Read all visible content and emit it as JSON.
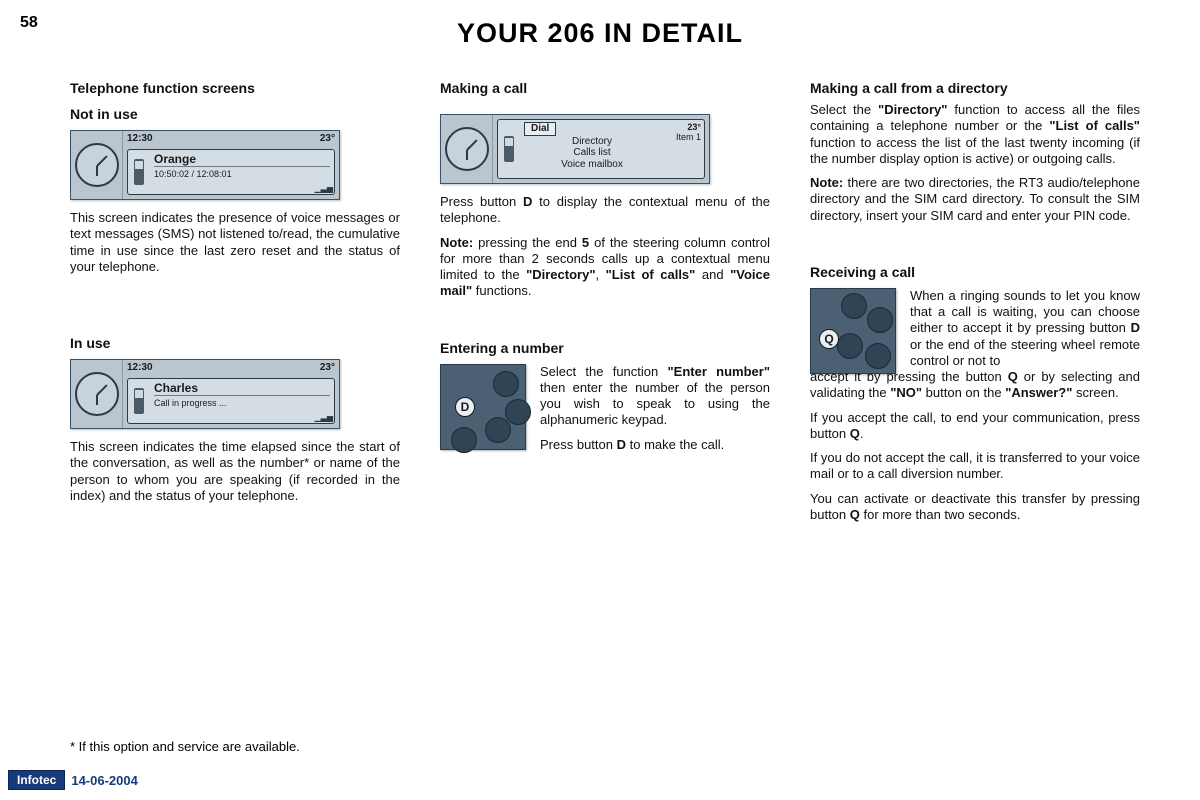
{
  "page_number": "58",
  "title": "YOUR 206 IN DETAIL",
  "col1": {
    "h1": "Telephone function screens",
    "h2": "Not in use",
    "screen1": {
      "time": "12:30",
      "temp": "23°",
      "name": "Orange",
      "sub": "10:50:02  /  12:08:01"
    },
    "p1": "This screen indicates the presence of voice messages or text messages (SMS) not listened to/read, the cumulative time in use since the last zero reset and the status of your telephone.",
    "h3": "In use",
    "screen2": {
      "time": "12:30",
      "temp": "23°",
      "name": "Charles",
      "sub": "Call in progress ..."
    },
    "p2": "This screen indicates the time elapsed since the start of the conversation, as well as the number* or name of the person to whom you are speaking (if recorded in the index) and the status of your telephone."
  },
  "col2": {
    "h1": "Making a call",
    "screen": {
      "temp": "23°",
      "m1": "Dial",
      "m2": "Directory",
      "m3": "Calls list",
      "m4": "Voice mailbox",
      "side": "Item 1"
    },
    "p1a": "Press button ",
    "p1b": "D",
    "p1c": " to display the contextual menu of the telephone.",
    "p2a": "Note:",
    "p2b": " pressing the end ",
    "p2c": "5",
    "p2d": " of the steering column control for more than 2 seconds calls up a contextual menu limited to the ",
    "p2e": "\"Directory\"",
    "p2f": ", ",
    "p2g": "\"List of calls\"",
    "p2h": " and ",
    "p2i": "\"Voice mail\"",
    "p2j": " functions.",
    "h2": "Entering a number",
    "keypad_label": "D",
    "p3a": "Select the function ",
    "p3b": "\"Enter number\"",
    "p3c": " then enter the number of the person you wish to speak to using the alphanumeric keypad.",
    "p4a": "Press button ",
    "p4b": "D",
    "p4c": " to make the call."
  },
  "col3": {
    "h1": "Making a call from a directory",
    "p1a": "Select the ",
    "p1b": "\"Directory\"",
    "p1c": " function to access all the files containing a telephone number or the ",
    "p1d": "\"List of calls\"",
    "p1e": " function to access the list of the last twenty incoming (if the number display option is active) or outgoing calls.",
    "p2a": "Note:",
    "p2b": " there are two directories, the RT3 audio/telephone directory and the SIM card directory. To consult the SIM directory, insert your SIM card and enter your PIN code.",
    "h2": "Receiving a call",
    "keypad_label": "Q",
    "p3a": "When a ringing sounds to let you know that a call is waiting, you can choose either to accept it by pressing button ",
    "p3b": "D",
    "p3c": " or the end of the steering wheel remote control or not to accept it by pressing the button ",
    "p3d": "Q",
    "p3e": " or by selecting and validating the ",
    "p3f": "\"NO\"",
    "p3g": " button on the ",
    "p3h": "\"Answer?\"",
    "p3i": " screen.",
    "p4a": "If you accept the call, to end your communication, press button ",
    "p4b": "Q",
    "p4c": ".",
    "p5": "If you do not accept the call, it is transferred to your voice mail or to a call diversion number.",
    "p6a": "You can activate or deactivate this transfer by pressing button ",
    "p6b": "Q",
    "p6c": " for more than two seconds."
  },
  "footnote": "* If this option and service are available.",
  "infotec": {
    "brand": "Infotec",
    "date": "14-06-2004"
  }
}
